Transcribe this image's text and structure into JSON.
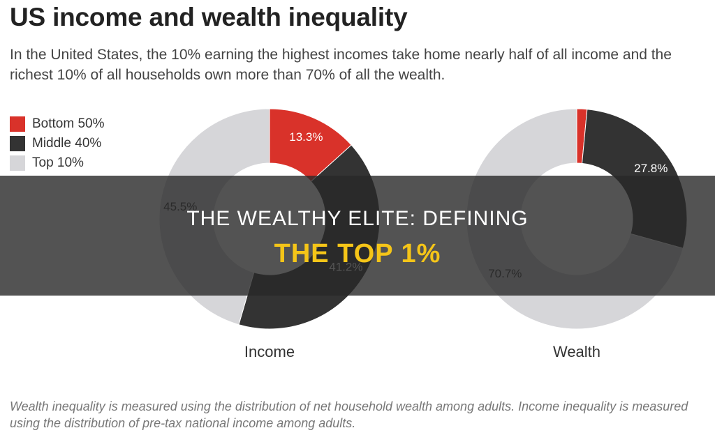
{
  "header": {
    "title": "US income and wealth inequality",
    "subtitle": "In the United States, the 10% earning the highest incomes take home nearly half of all income and the richest 10% of all households own more than 70% of all the wealth."
  },
  "legend": [
    {
      "label": "Bottom 50%",
      "color": "#d9322a"
    },
    {
      "label": "Middle 40%",
      "color": "#333333"
    },
    {
      "label": "Top 10%",
      "color": "#d6d6d9"
    }
  ],
  "banner": {
    "line1": "THE WEALTHY ELITE: DEFINING",
    "line2": "THE TOP 1%"
  },
  "footnote": "Wealth inequality is measured using the distribution of net household wealth among adults. Income inequality is measured using the distribution of pre-tax national income among adults.",
  "chart_data": [
    {
      "type": "pie",
      "title": "Income",
      "categories": [
        "Bottom 50%",
        "Middle 40%",
        "Top 10%"
      ],
      "values": [
        13.3,
        41.2,
        45.5
      ],
      "labels": [
        "13.3%",
        "41.2%",
        "45.5%"
      ],
      "colors": [
        "#d9322a",
        "#333333",
        "#d6d6d9"
      ]
    },
    {
      "type": "pie",
      "title": "Wealth",
      "categories": [
        "Bottom 50%",
        "Middle 40%",
        "Top 10%"
      ],
      "values": [
        1.5,
        27.8,
        70.7
      ],
      "labels": [
        "",
        "27.8%",
        "70.7%"
      ],
      "colors": [
        "#d9322a",
        "#333333",
        "#d6d6d9"
      ]
    }
  ]
}
